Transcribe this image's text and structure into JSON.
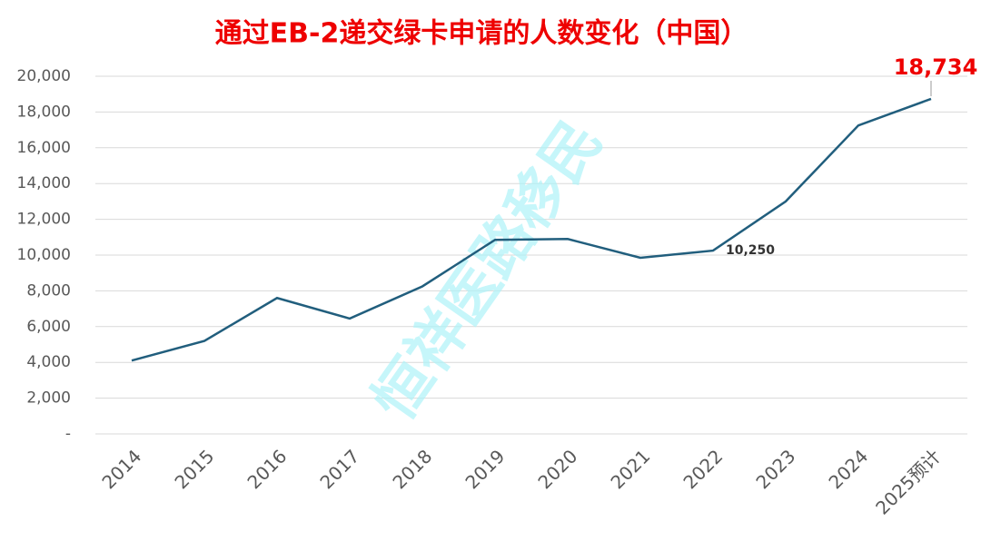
{
  "chart_data": {
    "type": "line",
    "title": "通过EB-2递交绿卡申请的人数变化（中国）",
    "watermark": "恒祥医路移民",
    "categories": [
      "2014",
      "2015",
      "2016",
      "2017",
      "2018",
      "2019",
      "2020",
      "2021",
      "2022",
      "2023",
      "2024",
      "2025预计"
    ],
    "series": [
      {
        "color": "#215e7d",
        "values": [
          4100,
          5200,
          7600,
          6450,
          8250,
          10850,
          10900,
          9850,
          10250,
          13000,
          17250,
          18734
        ],
        "value_labels": [
          null,
          null,
          null,
          null,
          null,
          null,
          null,
          null,
          "10,250",
          null,
          null,
          "18,734"
        ]
      }
    ],
    "ylim": [
      0,
      20000
    ],
    "yticks": [
      {
        "value": 0,
        "label": "-"
      },
      {
        "value": 2000,
        "label": "2,000"
      },
      {
        "value": 4000,
        "label": "4,000"
      },
      {
        "value": 6000,
        "label": "6,000"
      },
      {
        "value": 8000,
        "label": "8,000"
      },
      {
        "value": 10000,
        "label": "10,000"
      },
      {
        "value": 12000,
        "label": "12,000"
      },
      {
        "value": 14000,
        "label": "14,000"
      },
      {
        "value": 16000,
        "label": "16,000"
      },
      {
        "value": 18000,
        "label": "18,000"
      },
      {
        "value": 20000,
        "label": "20,000"
      }
    ],
    "grid": true
  }
}
